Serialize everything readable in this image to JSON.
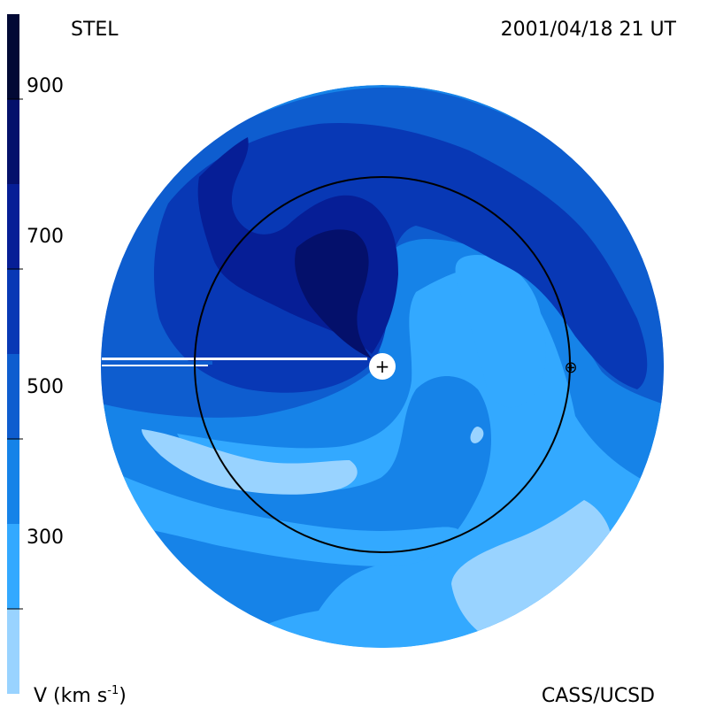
{
  "header": {
    "observatory": "STEL",
    "timestamp": "2001/04/18 21 UT"
  },
  "footer": {
    "colorbar_title": "V (km s",
    "colorbar_title_exponent": "-1",
    "colorbar_title_close": ")",
    "credit": "CASS/UCSD"
  },
  "colorbar": {
    "ticks": [
      "900",
      "700",
      "500",
      "300"
    ],
    "min": 200,
    "max": 1000,
    "bands": [
      {
        "from": 200,
        "to": 300,
        "color": "#99d3ff"
      },
      {
        "from": 300,
        "to": 400,
        "color": "#33a9ff"
      },
      {
        "from": 400,
        "to": 500,
        "color": "#1683e8"
      },
      {
        "from": 500,
        "to": 600,
        "color": "#0e5dcf"
      },
      {
        "from": 600,
        "to": 700,
        "color": "#0838b5"
      },
      {
        "from": 700,
        "to": 800,
        "color": "#061e96"
      },
      {
        "from": 800,
        "to": 900,
        "color": "#04106b"
      },
      {
        "from": 900,
        "to": 1000,
        "color": "#020935"
      }
    ]
  },
  "map": {
    "center_marker": "+",
    "earth_marker": "⊕"
  }
}
